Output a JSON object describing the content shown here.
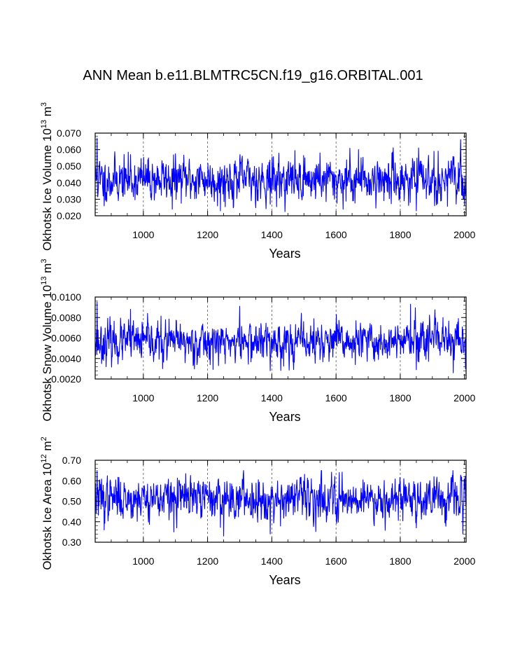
{
  "page": {
    "title": "ANN Mean b.e11.BLMTRC5CN.f19_g16.ORBITAL.001"
  },
  "colors": {
    "series": "#0000ff",
    "axis": "#000000",
    "grid": "#555555"
  },
  "chart_data": [
    {
      "type": "line",
      "title": "",
      "xlabel": "Years",
      "ylabel": "Okhotsk Ice Volume",
      "yunit_base": "10",
      "yunit_exp": "13",
      "yunit_base2": "m",
      "yunit_exp2": "3",
      "xlim": [
        850,
        2005
      ],
      "ylim": [
        0.02,
        0.07
      ],
      "xticks": [
        1000,
        1200,
        1400,
        1600,
        1800,
        2000
      ],
      "xtick_labels": [
        "1000",
        "1200",
        "1400",
        "1600",
        "1800",
        "2000"
      ],
      "yticks": [
        0.02,
        0.03,
        0.04,
        0.05,
        0.06,
        0.07
      ],
      "ytick_labels": [
        "0.020",
        "0.030",
        "0.040",
        "0.050",
        "0.060",
        "0.070"
      ],
      "x_gridlines": [
        1000,
        1200,
        1400,
        1600,
        1800
      ],
      "series_name": "Okhotsk Ice Volume",
      "x_start": 850,
      "x_end": 2005,
      "mean": 0.042,
      "amplitude": 0.0065,
      "min_clip": 0.0225,
      "max_clip": 0.067,
      "seed": 11,
      "anchors": [
        {
          "x": 850,
          "y": 0.048
        },
        {
          "x": 856,
          "y": 0.067
        },
        {
          "x": 866,
          "y": 0.039
        },
        {
          "x": 878,
          "y": 0.026
        },
        {
          "x": 900,
          "y": 0.033
        },
        {
          "x": 960,
          "y": 0.057
        },
        {
          "x": 1090,
          "y": 0.024
        },
        {
          "x": 1240,
          "y": 0.023
        },
        {
          "x": 1395,
          "y": 0.027
        },
        {
          "x": 1550,
          "y": 0.058
        },
        {
          "x": 1622,
          "y": 0.024
        },
        {
          "x": 1670,
          "y": 0.06
        },
        {
          "x": 1850,
          "y": 0.023
        },
        {
          "x": 1905,
          "y": 0.059
        },
        {
          "x": 2000,
          "y": 0.026
        }
      ]
    },
    {
      "type": "line",
      "title": "",
      "xlabel": "Years",
      "ylabel": "Okhotsk Snow Volume",
      "yunit_base": "10",
      "yunit_exp": "13",
      "yunit_base2": "m",
      "yunit_exp2": "3",
      "xlim": [
        850,
        2005
      ],
      "ylim": [
        0.002,
        0.01
      ],
      "xticks": [
        1000,
        1200,
        1400,
        1600,
        1800,
        2000
      ],
      "xtick_labels": [
        "1000",
        "1200",
        "1400",
        "1600",
        "1800",
        "2000"
      ],
      "yticks": [
        0.002,
        0.004,
        0.006,
        0.008,
        0.01
      ],
      "ytick_labels": [
        "0.0020",
        "0.0040",
        "0.0060",
        "0.0080",
        "0.0100"
      ],
      "x_gridlines": [
        1000,
        1200,
        1400,
        1600,
        1800
      ],
      "series_name": "Okhotsk Snow Volume",
      "x_start": 850,
      "x_end": 2005,
      "mean": 0.0056,
      "amplitude": 0.00095,
      "min_clip": 0.0027,
      "max_clip": 0.0095,
      "seed": 23,
      "anchors": [
        {
          "x": 856,
          "y": 0.0095
        },
        {
          "x": 870,
          "y": 0.0035
        },
        {
          "x": 960,
          "y": 0.0088
        },
        {
          "x": 1060,
          "y": 0.003
        },
        {
          "x": 1300,
          "y": 0.0091
        },
        {
          "x": 1395,
          "y": 0.0028
        },
        {
          "x": 1660,
          "y": 0.0034
        },
        {
          "x": 1832,
          "y": 0.0093
        },
        {
          "x": 1850,
          "y": 0.0029
        },
        {
          "x": 1965,
          "y": 0.0026
        },
        {
          "x": 2003,
          "y": 0.003
        }
      ]
    },
    {
      "type": "line",
      "title": "",
      "xlabel": "Years",
      "ylabel": "Okhotsk Ice Area",
      "yunit_base": "10",
      "yunit_exp": "12",
      "yunit_base2": "m",
      "yunit_exp2": "2",
      "xlim": [
        850,
        2005
      ],
      "ylim": [
        0.3,
        0.7
      ],
      "xticks": [
        1000,
        1200,
        1400,
        1600,
        1800,
        2000
      ],
      "xtick_labels": [
        "1000",
        "1200",
        "1400",
        "1600",
        "1800",
        "2000"
      ],
      "yticks": [
        0.3,
        0.4,
        0.5,
        0.6,
        0.7
      ],
      "ytick_labels": [
        "0.30",
        "0.40",
        "0.50",
        "0.60",
        "0.70"
      ],
      "x_gridlines": [
        1000,
        1200,
        1400,
        1600,
        1800
      ],
      "series_name": "Okhotsk Ice Area",
      "x_start": 850,
      "x_end": 2005,
      "mean": 0.515,
      "amplitude": 0.05,
      "min_clip": 0.33,
      "max_clip": 0.65,
      "seed": 37,
      "anchors": [
        {
          "x": 856,
          "y": 0.65
        },
        {
          "x": 878,
          "y": 0.36
        },
        {
          "x": 1095,
          "y": 0.35
        },
        {
          "x": 1250,
          "y": 0.33
        },
        {
          "x": 1395,
          "y": 0.34
        },
        {
          "x": 1555,
          "y": 0.65
        },
        {
          "x": 1610,
          "y": 0.64
        },
        {
          "x": 1850,
          "y": 0.37
        },
        {
          "x": 1905,
          "y": 0.62
        },
        {
          "x": 1995,
          "y": 0.34
        }
      ]
    }
  ]
}
